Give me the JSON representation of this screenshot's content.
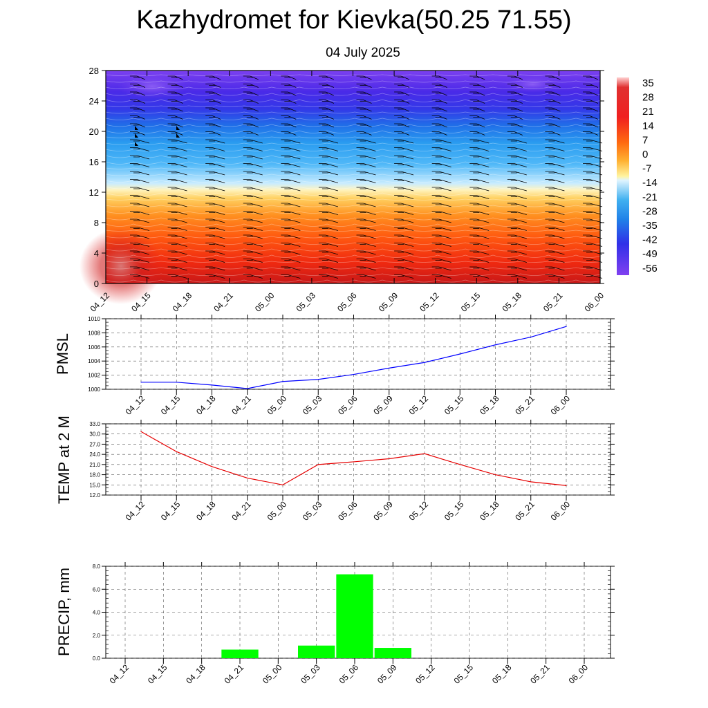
{
  "title": "Kazhydromet for Kievka(50.25 71.55)",
  "subtitle": "04 July 2025",
  "chart_data": [
    {
      "type": "heatmap",
      "name": "cross-section",
      "x_labels": [
        "04_12",
        "04_15",
        "04_18",
        "04_21",
        "05_00",
        "05_03",
        "05_06",
        "05_09",
        "05_12",
        "05_15",
        "05_18",
        "05_21",
        "06_00"
      ],
      "y_ticks": [
        0,
        4,
        8,
        12,
        16,
        20,
        24,
        28
      ],
      "ylim": [
        0,
        28
      ],
      "colorbar": {
        "labels": [
          "35",
          "28",
          "21",
          "14",
          "7",
          "0",
          "-7",
          "-14",
          "-21",
          "-28",
          "-35",
          "-42",
          "-49",
          "-56"
        ],
        "range": [
          -60,
          38
        ]
      },
      "description_fields": {
        "wind_barbs": true,
        "contour_lines": true
      },
      "colors": {
        "hot": "#e8201a",
        "warm": "#ff8c1a",
        "neutral": "#fff6b0",
        "cool": "#2aa0f0",
        "cold": "#3a30e8",
        "coldest": "#8a3af0"
      }
    },
    {
      "type": "line",
      "ylabel": "PMSL",
      "x_labels": [
        "04_12",
        "04_15",
        "04_18",
        "04_21",
        "05_00",
        "05_03",
        "05_06",
        "05_09",
        "05_12",
        "05_15",
        "05_18",
        "05_21",
        "06_00"
      ],
      "y_ticks": [
        "1000",
        "1002",
        "1004",
        "1006",
        "1008",
        "1010"
      ],
      "ylim": [
        1000,
        1010
      ],
      "series": [
        {
          "color": "#0000ff",
          "values": [
            1001.0,
            1001.0,
            1000.6,
            1000.1,
            1001.1,
            1001.4,
            1002.1,
            1003.0,
            1003.8,
            1005.0,
            1006.3,
            1007.4,
            1008.9
          ]
        }
      ],
      "grid": true
    },
    {
      "type": "line",
      "ylabel": "TEMP at 2 M",
      "x_labels": [
        "04_12",
        "04_15",
        "04_18",
        "04_21",
        "05_00",
        "05_03",
        "05_06",
        "05_09",
        "05_12",
        "05_15",
        "05_18",
        "05_21",
        "06_00"
      ],
      "y_ticks": [
        "12.0",
        "15.0",
        "18.0",
        "21.0",
        "24.0",
        "27.0",
        "30.0",
        "33.0"
      ],
      "ylim": [
        12,
        33
      ],
      "series": [
        {
          "color": "#e60000",
          "values": [
            30.7,
            24.8,
            20.4,
            17.0,
            15.0,
            21.0,
            21.8,
            22.7,
            24.2,
            21.0,
            18.0,
            15.9,
            14.8
          ]
        }
      ],
      "grid": true
    },
    {
      "type": "bar",
      "ylabel": "PRECIP, mm",
      "categories": [
        "04_12",
        "04_15",
        "04_18",
        "04_21",
        "05_00",
        "05_03",
        "05_06",
        "05_09",
        "05_12",
        "05_15",
        "05_18",
        "05_21",
        "06_00"
      ],
      "y_ticks": [
        "0.0",
        "2.0",
        "4.0",
        "6.0",
        "8.0"
      ],
      "ylim": [
        0,
        8
      ],
      "values": [
        0,
        0,
        0,
        0.75,
        0,
        1.1,
        7.3,
        0.9,
        0,
        0,
        0,
        0,
        0
      ],
      "color": "#00ff00",
      "grid": true
    }
  ]
}
